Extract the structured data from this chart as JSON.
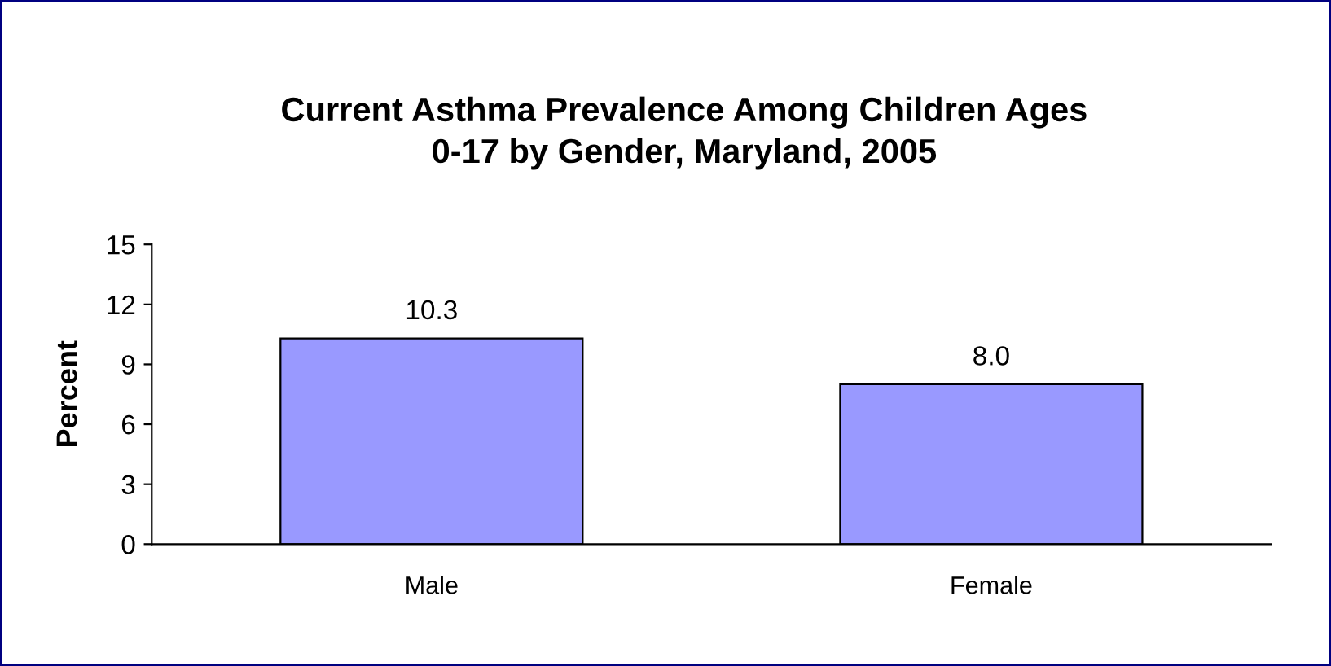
{
  "chart_data": {
    "type": "bar",
    "title": "Current Asthma Prevalence Among Children Ages\n0-17 by Gender, Maryland, 2005",
    "ylabel": "Percent",
    "categories": [
      "Male",
      "Female"
    ],
    "values": [
      10.3,
      8.0
    ],
    "value_labels": [
      "10.3",
      "8.0"
    ],
    "color": "#9999ff",
    "ylim": [
      0,
      15
    ],
    "yticks": [
      0,
      3,
      6,
      9,
      12,
      15
    ],
    "grid": false
  }
}
